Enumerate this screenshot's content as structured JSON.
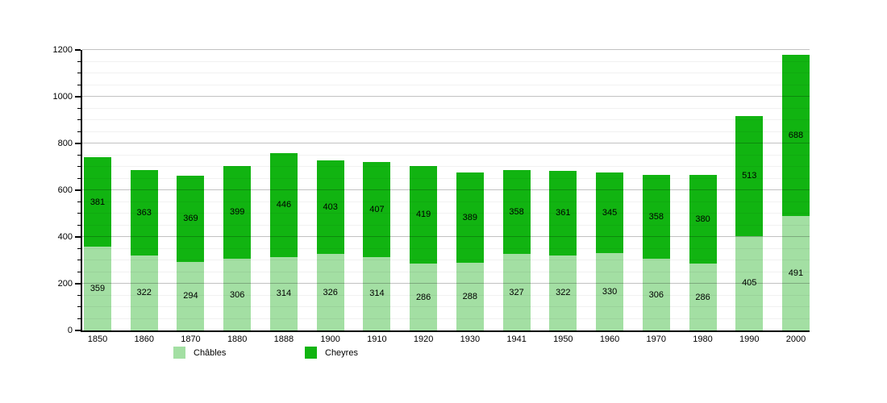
{
  "chart_data": {
    "type": "bar",
    "stacked": true,
    "title": "",
    "categories": [
      "1850",
      "1860",
      "1870",
      "1880",
      "1888",
      "1900",
      "1910",
      "1920",
      "1930",
      "1941",
      "1950",
      "1960",
      "1970",
      "1980",
      "1990",
      "2000"
    ],
    "series": [
      {
        "name": "Châbles",
        "color": "#a3dfa3",
        "values": [
          359,
          322,
          294,
          306,
          314,
          326,
          314,
          286,
          288,
          327,
          322,
          330,
          306,
          286,
          405,
          491
        ]
      },
      {
        "name": "Cheyres",
        "color": "#11b411",
        "values": [
          381,
          363,
          369,
          399,
          446,
          403,
          407,
          419,
          389,
          358,
          361,
          345,
          358,
          380,
          513,
          688
        ]
      }
    ],
    "ylim": [
      0,
      1200
    ],
    "yticks": [
      0,
      200,
      400,
      600,
      800,
      1000,
      1200
    ],
    "minor_grid_step": 50,
    "grid": true,
    "legend_position": "bottom",
    "value_labels": true,
    "axis_color": "#000000"
  }
}
